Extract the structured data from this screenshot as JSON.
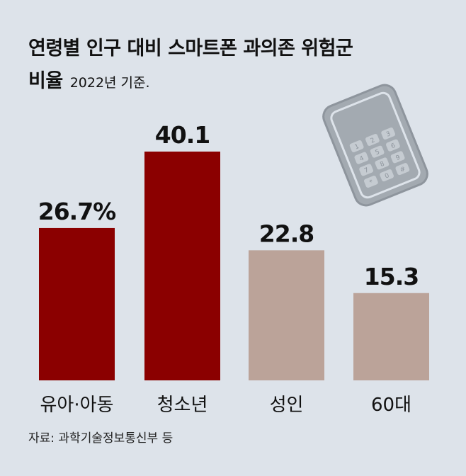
{
  "header": {
    "title_line1": "연령별 인구 대비 스마트폰 과의존 위험군",
    "title_line2": "비율",
    "subtitle": "2022년 기준."
  },
  "source": "자료: 과학기술정보통신부 등",
  "phone_keys": [
    "1",
    "2",
    "3",
    "4",
    "5",
    "6",
    "7",
    "8",
    "9",
    "*",
    "0",
    "#"
  ],
  "chart_data": {
    "type": "bar",
    "title": "연령별 인구 대비 스마트폰 과의존 위험군 비율",
    "subtitle": "2022년 기준.",
    "categories": [
      "유아·아동",
      "청소년",
      "성인",
      "60대"
    ],
    "values": [
      26.7,
      40.1,
      22.8,
      15.3
    ],
    "value_labels": [
      "26.7%",
      "40.1",
      "22.8",
      "15.3"
    ],
    "unit": "%",
    "colors": [
      "#8b0000",
      "#8b0000",
      "#bba399",
      "#bba399"
    ],
    "ylim": [
      0,
      40.1
    ],
    "grid": false,
    "legend": "none"
  }
}
